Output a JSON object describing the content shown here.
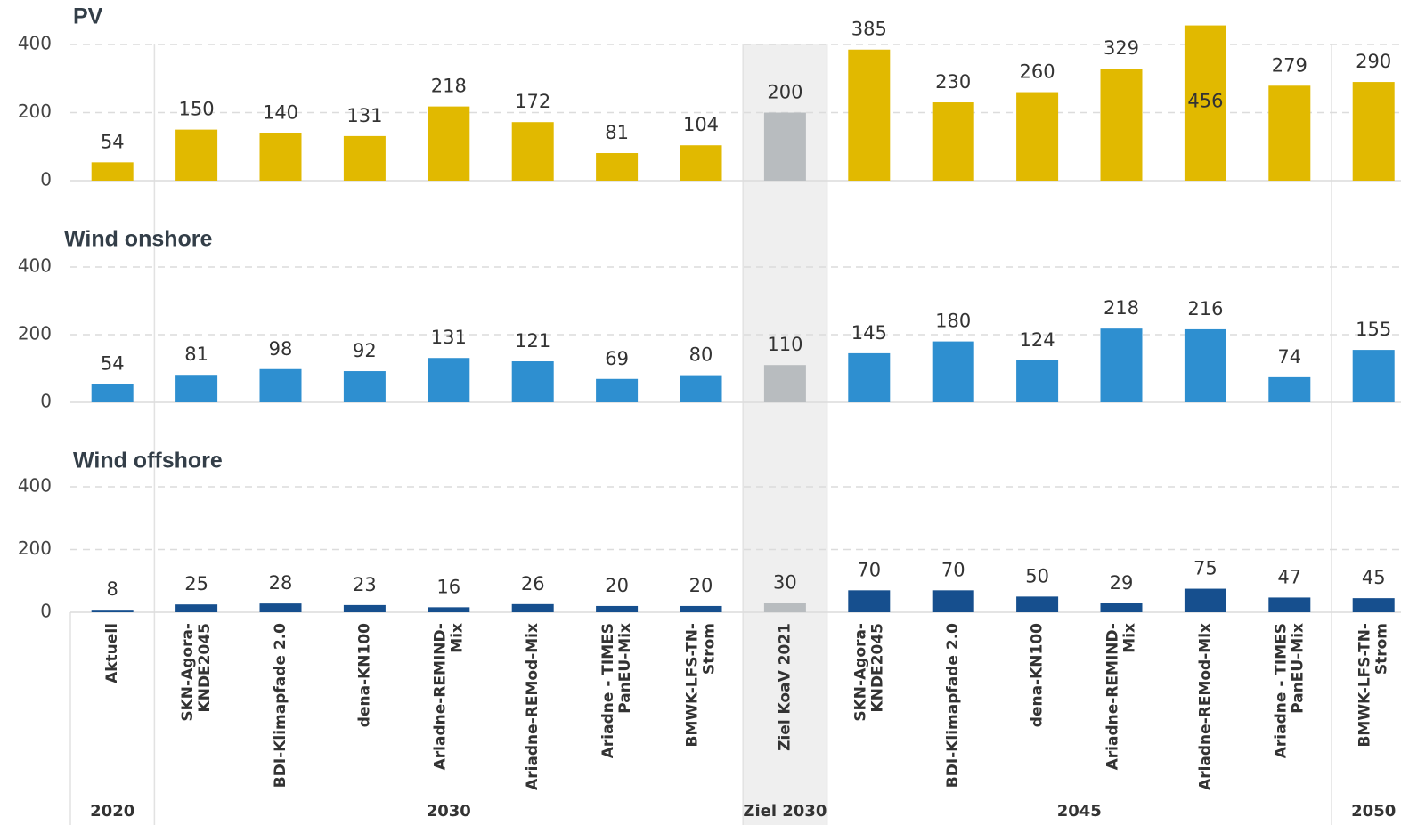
{
  "chart_data": {
    "type": "bar",
    "groups": [
      {
        "name": "2020",
        "categories": [
          [
            "Aktuell"
          ]
        ]
      },
      {
        "name": "2030",
        "categories": [
          [
            "SKN-Agora-",
            "KNDE2045"
          ],
          [
            "BDI-Klimapfade 2.0"
          ],
          [
            "dena-KN100"
          ],
          [
            "Ariadne-REMIND-",
            "Mix"
          ],
          [
            "Ariadne-REMod-Mix"
          ],
          [
            "Ariadne - TIMES",
            "PanEU-Mix"
          ],
          [
            "BMWK-LFS-TN-",
            "Strom"
          ]
        ]
      },
      {
        "name": "Ziel 2030",
        "categories": [
          [
            "Ziel KoaV 2021"
          ]
        ]
      },
      {
        "name": "2045",
        "categories": [
          [
            "SKN-Agora-",
            "KNDE2045"
          ],
          [
            "BDI-Klimapfade 2.0"
          ],
          [
            "dena-KN100"
          ],
          [
            "Ariadne-REMIND-",
            "Mix"
          ],
          [
            "Ariadne-REMod-Mix"
          ],
          [
            "Ariadne - TIMES",
            "PanEU-Mix"
          ]
        ]
      },
      {
        "name": "2050",
        "categories": [
          [
            "BMWK-LFS-TN-",
            "Strom"
          ]
        ]
      }
    ],
    "highlight_group": 2,
    "highlight_color": "#b8bcbf",
    "ylim": [
      0,
      400
    ],
    "yticks": [
      0,
      200,
      400
    ],
    "grid": true,
    "series": [
      {
        "name": "PV",
        "color": "#e1b900",
        "values": [
          54,
          150,
          140,
          131,
          218,
          172,
          81,
          104,
          200,
          385,
          230,
          260,
          329,
          456,
          279,
          290
        ]
      },
      {
        "name": "Wind onshore",
        "color": "#2e8fd0",
        "values": [
          54,
          81,
          98,
          92,
          131,
          121,
          69,
          80,
          110,
          145,
          180,
          124,
          218,
          216,
          74,
          155
        ]
      },
      {
        "name": "Wind offshore",
        "color": "#164f8e",
        "values": [
          8,
          25,
          28,
          23,
          16,
          26,
          20,
          20,
          30,
          70,
          70,
          50,
          29,
          75,
          47,
          45
        ]
      }
    ]
  }
}
